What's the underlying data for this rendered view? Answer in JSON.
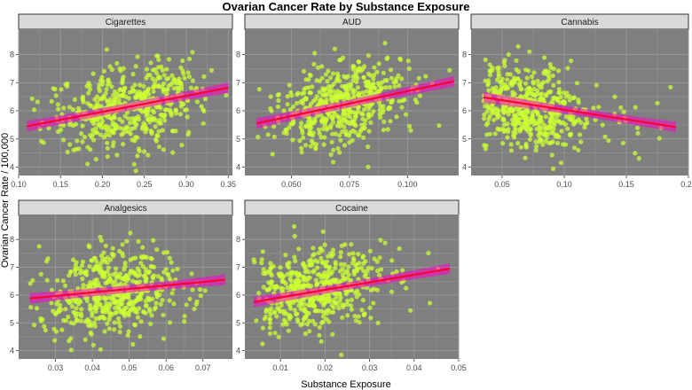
{
  "chart_data": {
    "type": "scatter",
    "title": "Ovarian Cancer Rate by Substance Exposure",
    "xlabel": "Substance Exposure",
    "ylabel": "Ovarian Cancer Rate / 100,000",
    "ylim": [
      3.7,
      8.9
    ],
    "y_ticks": [
      4,
      5,
      6,
      7,
      8
    ],
    "colors": {
      "points": "#ccff33",
      "fit_line": "#ff0033",
      "ci_band": "#ff00cc",
      "panel_bg": "#7f7f7f",
      "grid": "#999999",
      "strip_bg": "#d9d9d9"
    },
    "panels": [
      {
        "name": "Cigarettes",
        "xlim": [
          0.1,
          0.355
        ],
        "x_ticks": [
          "0.10",
          "0.15",
          "0.20",
          "0.25",
          "0.30",
          "0.35"
        ],
        "fit": {
          "x": [
            0.11,
            0.35
          ],
          "y": [
            5.45,
            6.82
          ]
        },
        "x_center": 0.23,
        "x_sd": 0.045,
        "x_range": [
          0.11,
          0.35
        ],
        "y_center": 6.15,
        "y_sd": 0.75,
        "corr": 0.3
      },
      {
        "name": "AUD",
        "xlim": [
          0.03,
          0.122
        ],
        "x_ticks": [
          "0.050",
          "0.075",
          "0.100"
        ],
        "fit": {
          "x": [
            0.035,
            0.12
          ],
          "y": [
            5.55,
            7.05
          ]
        },
        "x_center": 0.072,
        "x_sd": 0.016,
        "x_range": [
          0.035,
          0.12
        ],
        "y_center": 6.2,
        "y_sd": 0.75,
        "corr": 0.33
      },
      {
        "name": "Cannabis",
        "xlim": [
          0.025,
          0.2
        ],
        "x_ticks": [
          "0.05",
          "0.10",
          "0.15",
          "0.20"
        ],
        "fit": {
          "x": [
            0.035,
            0.19
          ],
          "y": [
            6.48,
            5.42
          ]
        },
        "x_center": 0.068,
        "x_sd": 0.025,
        "x_range": [
          0.035,
          0.19
        ],
        "y_center": 6.15,
        "y_sd": 0.75,
        "corr": -0.22
      },
      {
        "name": "Analgesics",
        "xlim": [
          0.02,
          0.078
        ],
        "x_ticks": [
          "0.03",
          "0.04",
          "0.05",
          "0.06",
          "0.07"
        ],
        "fit": {
          "x": [
            0.023,
            0.076
          ],
          "y": [
            5.88,
            6.55
          ]
        },
        "x_center": 0.046,
        "x_sd": 0.009,
        "x_range": [
          0.023,
          0.076
        ],
        "y_center": 6.15,
        "y_sd": 0.75,
        "corr": 0.15
      },
      {
        "name": "Cocaine",
        "xlim": [
          0.002,
          0.05
        ],
        "x_ticks": [
          "0.01",
          "0.02",
          "0.03",
          "0.04",
          "0.05"
        ],
        "fit": {
          "x": [
            0.004,
            0.048
          ],
          "y": [
            5.75,
            6.95
          ]
        },
        "x_center": 0.018,
        "x_sd": 0.0075,
        "x_range": [
          0.004,
          0.048
        ],
        "y_center": 6.2,
        "y_sd": 0.75,
        "corr": 0.3
      }
    ]
  }
}
